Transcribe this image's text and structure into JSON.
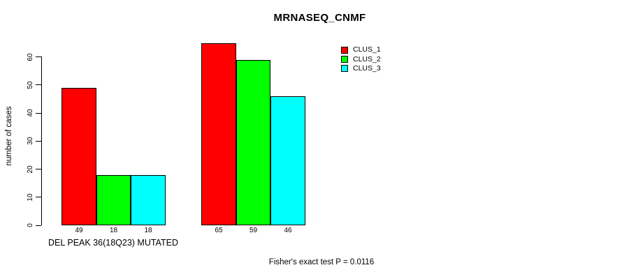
{
  "chart_data": {
    "type": "bar",
    "title": "MRNASEQ_CNMF",
    "ylabel": "number of cases",
    "xlabel": "DEL PEAK 36(18Q23) MUTATED",
    "annotation": "Fisher's exact test P = 0.0116",
    "categories": [
      "DEL PEAK 36(18Q23) MUTATED",
      ""
    ],
    "series": [
      {
        "name": "CLUS_1",
        "color": "#ff0000",
        "values": [
          49,
          65
        ]
      },
      {
        "name": "CLUS_2",
        "color": "#00ff00",
        "values": [
          18,
          59
        ]
      },
      {
        "name": "CLUS_3",
        "color": "#00ffff",
        "values": [
          18,
          46
        ]
      }
    ],
    "bar_value_labels": [
      [
        "49",
        "18",
        "18"
      ],
      [
        "65",
        "59",
        "46"
      ]
    ],
    "yticks": [
      0,
      10,
      20,
      30,
      40,
      50,
      60
    ],
    "ylim": [
      0,
      65
    ],
    "grid": false,
    "legend_position": "top-right",
    "bar_outline_color": "#000000",
    "background_color": "#ffffff"
  }
}
